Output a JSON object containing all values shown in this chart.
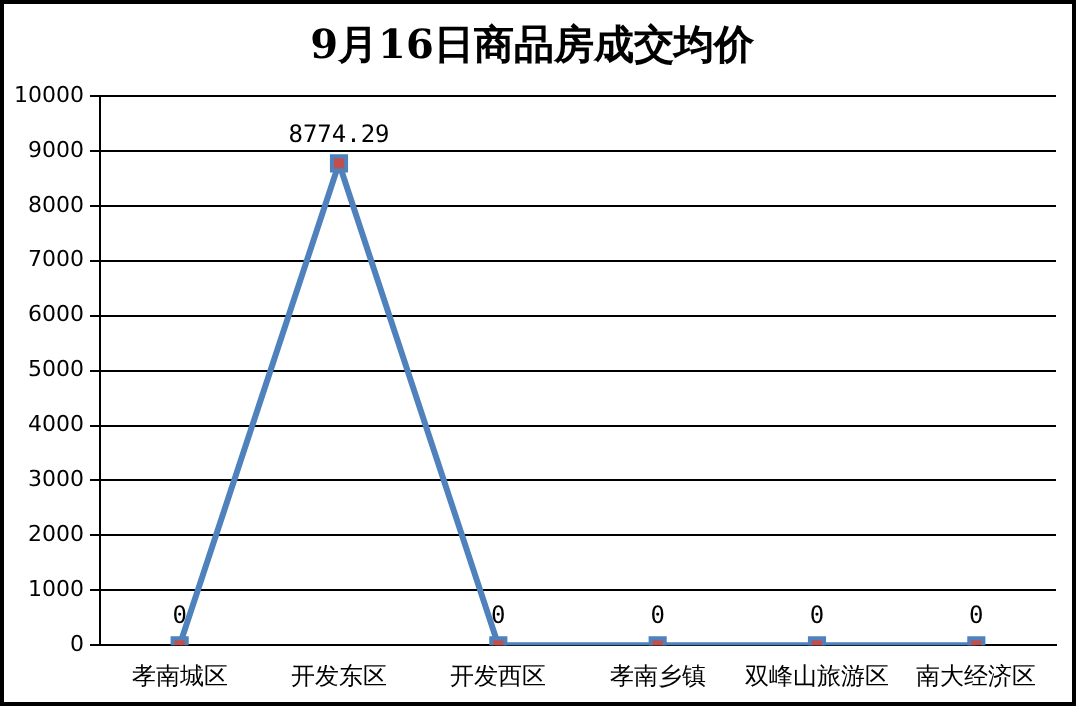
{
  "chart_data": {
    "type": "line",
    "title": "9月16日商品房成交均价",
    "categories": [
      "孝南城区",
      "开发东区",
      "开发西区",
      "孝南乡镇",
      "双峰山旅游区",
      "南大经济区"
    ],
    "series": [
      {
        "color": "#4f81bd",
        "values": [
          0,
          8774.29,
          0,
          0,
          0,
          0
        ]
      }
    ],
    "ylim": [
      0,
      10000
    ],
    "yticks": [
      0,
      1000,
      2000,
      3000,
      4000,
      5000,
      6000,
      7000,
      8000,
      9000,
      10000
    ],
    "grid": "y",
    "legend": false,
    "marker": "square",
    "line_style": "solid",
    "data_labels": true
  }
}
